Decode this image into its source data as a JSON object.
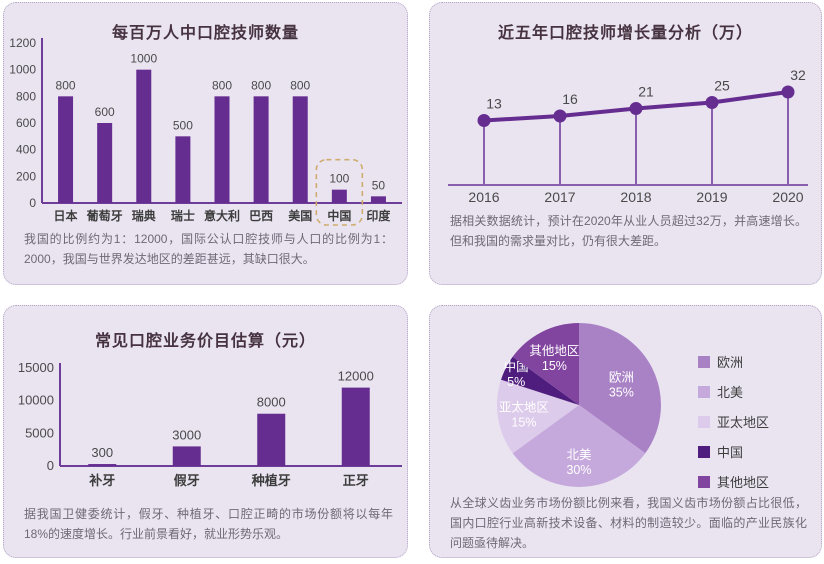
{
  "colors": {
    "page_bg": "#FFFFFF",
    "panel_bg": "#EAE4F1",
    "panel_border": "#B2A2C3",
    "accent_purple": "#662D91",
    "axis_purple": "#6E3D99",
    "stem_purple": "#8A5FB0",
    "title_text": "#463241",
    "note_text": "#6F6875",
    "label_text": "#4A4A4A",
    "category_text": "#3D3D3D",
    "highlight_dash": "#CFAC6E",
    "pie_label_text": "#FFFFFF"
  },
  "panels": [
    {
      "id": "technicians-per-million",
      "note": "我国的比例约为1：12000，国际公认口腔技师与人口的比例为1：2000，我国与世界发达地区的差距甚远，其缺口很大。"
    },
    {
      "id": "growth-analysis",
      "note": "据相关数据统计，预计在2020年从业人员超过32万，并高速增长。但和我国的需求量对比，仍有很大差距。"
    },
    {
      "id": "price-estimate",
      "note": "据我国卫健委统计，假牙、种植牙、口腔正畸的市场份额将以每年18%的速度增长。行业前景看好，就业形势乐观。"
    },
    {
      "id": "global-market-share",
      "note": "从全球义齿业务市场份额比例来看，我国义齿市场份额占比很低，国内口腔行业高新技术设备、材料的制造较少。面临的产业民族化问题亟待解决。"
    }
  ],
  "chart_data": [
    {
      "type": "bar",
      "title": "每百万人中口腔技师数量",
      "categories": [
        "日本",
        "葡萄牙",
        "瑞典",
        "瑞士",
        "意大利",
        "巴西",
        "美国",
        "中国",
        "印度"
      ],
      "values": [
        800,
        600,
        1000,
        500,
        800,
        800,
        800,
        100,
        50
      ],
      "yticks": [
        0,
        200,
        400,
        600,
        800,
        1000,
        1200
      ],
      "ylim": [
        0,
        1200
      ],
      "highlight_category": "中国",
      "bar_color": "#662D91",
      "grid": false
    },
    {
      "type": "line",
      "title": "近五年口腔技师增长量分析（万）",
      "x": [
        "2016",
        "2017",
        "2018",
        "2019",
        "2020"
      ],
      "values": [
        13,
        16,
        21,
        25,
        32
      ],
      "line_color": "#662D91",
      "grid": false
    },
    {
      "type": "bar",
      "title": "常见口腔业务价目估算（元）",
      "categories": [
        "补牙",
        "假牙",
        "种植牙",
        "正牙"
      ],
      "values": [
        300,
        3000,
        8000,
        12000
      ],
      "yticks": [
        0,
        5000,
        10000,
        15000
      ],
      "ylim": [
        0,
        15000
      ],
      "bar_color": "#662D91",
      "grid": false
    },
    {
      "type": "pie",
      "title": "",
      "slices": [
        {
          "label": "欧洲",
          "percent": 35,
          "color": "#A982C6"
        },
        {
          "label": "北美",
          "percent": 30,
          "color": "#C5A9DC"
        },
        {
          "label": "亚太地区",
          "percent": 15,
          "color": "#DCCBEA"
        },
        {
          "label": "中国",
          "percent": 5,
          "color": "#4E1D7D"
        },
        {
          "label": "其他地区",
          "percent": 15,
          "color": "#81449F"
        }
      ],
      "legend": [
        "欧洲",
        "北美",
        "亚太地区",
        "中国",
        "其他地区"
      ],
      "legend_position": "right"
    }
  ]
}
